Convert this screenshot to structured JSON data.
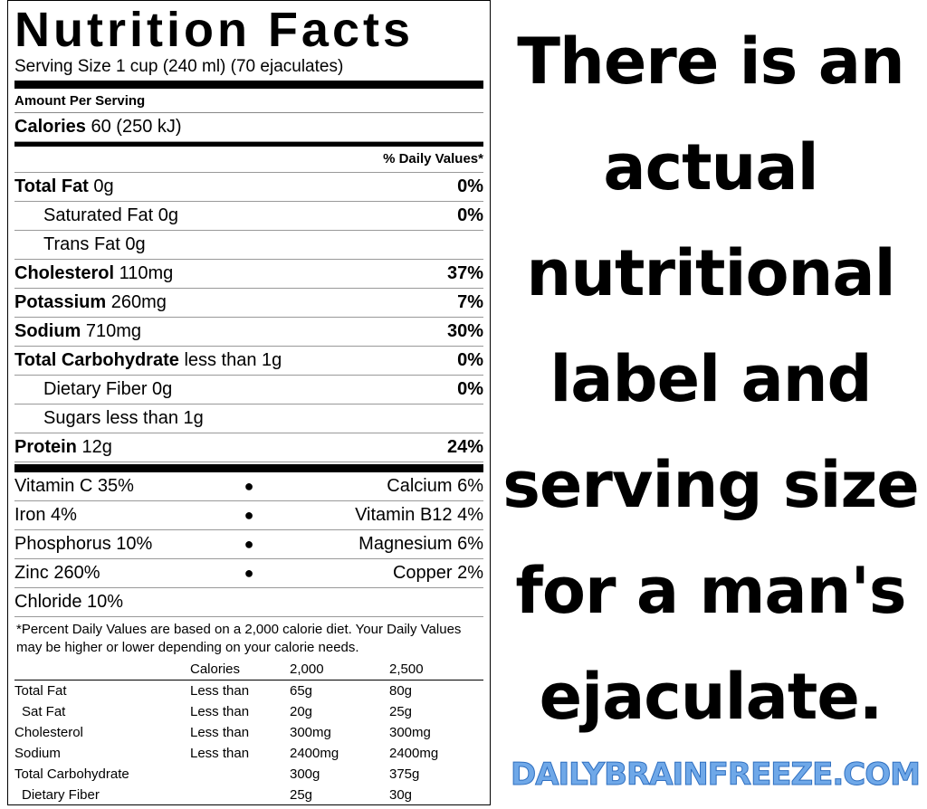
{
  "label": {
    "title": "Nutrition Facts",
    "serving": "Serving Size 1 cup (240 ml) (70 ejaculates)",
    "amount_per_serving": "Amount Per Serving",
    "calories": {
      "name": "Calories",
      "amount": "60 (250 kJ)"
    },
    "dv_header": "% Daily Values*",
    "nutrients": [
      {
        "name": "Total Fat",
        "amount": "0g",
        "dv": "0%",
        "bold": true
      },
      {
        "name": "Saturated Fat",
        "amount": "0g",
        "dv": "0%",
        "bold": false
      },
      {
        "name": "Trans Fat",
        "amount": "0g",
        "bold": false
      },
      {
        "name": "Cholesterol",
        "amount": "110mg",
        "dv": "37%",
        "bold": true
      },
      {
        "name": "Potassium",
        "amount": "260mg",
        "dv": "7%",
        "bold": true
      },
      {
        "name": "Sodium",
        "amount": "710mg",
        "dv": "30%",
        "bold": true
      },
      {
        "name": "Total Carbohydrate",
        "amount": "less than 1g",
        "dv": "0%",
        "bold": true
      },
      {
        "name": "Dietary Fiber",
        "amount": "0g",
        "dv": "0%",
        "bold": false
      },
      {
        "name": "Sugars",
        "amount": "less than 1g",
        "bold": false
      },
      {
        "name": "Protein",
        "amount": "12g",
        "dv": "24%",
        "bold": true
      }
    ],
    "vitamins": [
      [
        "Vitamin C 35%",
        "Calcium 6%"
      ],
      [
        "Iron 4%",
        "Vitamin B12 4%"
      ],
      [
        "Phosphorus 10%",
        "Magnesium 6%"
      ],
      [
        "Zinc 260%",
        "Copper 2%"
      ],
      [
        "Chloride 10%"
      ]
    ],
    "footnote": "*Percent Daily Values are based on a 2,000 calorie diet. Your Daily Values may be higher or lower depending on your calorie needs.",
    "table": {
      "header": [
        "Calories",
        "2,000",
        "2,500"
      ],
      "rows": [
        [
          "Total Fat",
          "Less than",
          "65g",
          "80g"
        ],
        [
          "Sat Fat",
          "Less than",
          "20g",
          "25g"
        ],
        [
          "Cholesterol",
          "Less than",
          "300mg",
          "300mg"
        ],
        [
          "Sodium",
          "Less than",
          "2400mg",
          "2400mg"
        ],
        [
          "Total Carbohydrate",
          null,
          "300g",
          "375g"
        ],
        [
          "Dietary Fiber",
          null,
          "25g",
          "30g"
        ]
      ]
    }
  },
  "caption": {
    "lines": [
      "There is an",
      "actual",
      "nutritional",
      "label and",
      "serving size",
      "for a man's",
      "ejaculate."
    ]
  },
  "watermark": "DAILYBRAINFREEZE.COM"
}
